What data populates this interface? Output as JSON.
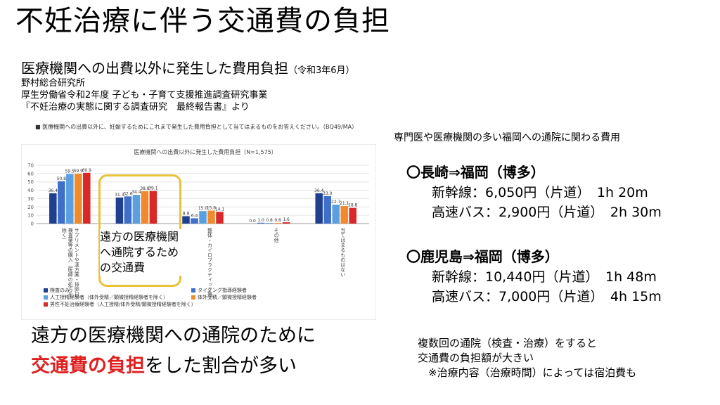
{
  "slide": {
    "title": "不妊治療に伴う交通費の負担",
    "subtitle": "医療機関への出費以外に発生した費用負担",
    "subtitle_note": "（令和3年6月）",
    "source": [
      "野村総合研究所",
      "厚生労働省令和2年度 子ども・子育て支援推進調査研究事業",
      "『不妊治療の実態に関する調査研究　最終報告書』より"
    ],
    "question": "■ 医療機関への出費以外に、妊娠するためにこれまで発生した費用負担として当てはまるものをお答えください。（BQ49/MA）",
    "highlight_label": "遠方の医療機関へ通院するための交通費",
    "bottom_line1": "遠方の医療機関への通院のために",
    "bottom_red": "交通費の負担",
    "bottom_rest": "をした割合が多い"
  },
  "right": {
    "heading": "専門医や医療機関の多い福岡への通院に関わる費用",
    "routes": [
      {
        "title": "〇長崎⇒福岡（博多）",
        "lines": [
          "新幹線：6,050円（片道）　1h 20m",
          "高速バス：2,900円（片道）　2h 30m"
        ]
      },
      {
        "title": "〇鹿児島⇒福岡（博多）",
        "lines": [
          "新幹線：10,440円（片道）　1h 48m",
          "高速バス：7,000円（片道）　4h 15m"
        ]
      }
    ],
    "notes": [
      "複数回の通院（検査・治療）をすると",
      "交通費の負担額が大きい",
      "　※治療内容（治療時間）によっては宿泊費も"
    ]
  },
  "chart_data": {
    "type": "bar",
    "title": "医療機関への出費以外に発生した費用負担（N=1,575）",
    "ylim": [
      0,
      70
    ],
    "yticks": [
      0,
      10,
      20,
      30,
      40,
      50,
      60,
      70
    ],
    "grid": true,
    "legend_position": "bottom",
    "categories": [
      "サプリメントや漢方薬・排卵日検査薬等の購入（医師の処方を除く）",
      "遠方の医療機関へ通院するための交通費",
      "整体・カイロプラクティック等",
      "その他",
      "当てはまるものはない"
    ],
    "series": [
      {
        "name": "検査のみ",
        "color": "#1f3f8f",
        "values": [
          36.4,
          31.3,
          8.9,
          0.0,
          36.4
        ]
      },
      {
        "name": "タイミング指導経験者",
        "color": "#3f6fc8",
        "values": [
          50.8,
          32.6,
          6.4,
          1.0,
          33.0
        ]
      },
      {
        "name": "人工授精経験者（体外受精／顕微授精経験者を除く）",
        "color": "#5aa0e0",
        "values": [
          59.5,
          34.4,
          15.0,
          0.8,
          22.7
        ]
      },
      {
        "name": "体外受精／顕微授精経験者",
        "color": "#f08a2c",
        "values": [
          59.9,
          38.8,
          15.6,
          0.8,
          21.1
        ]
      },
      {
        "name": "男性不妊治療経験者（人工授精/体外受精/顕微授精経験者を除く）",
        "color": "#d82828",
        "values": [
          60.9,
          39.1,
          14.1,
          1.6,
          18.8
        ]
      }
    ]
  }
}
